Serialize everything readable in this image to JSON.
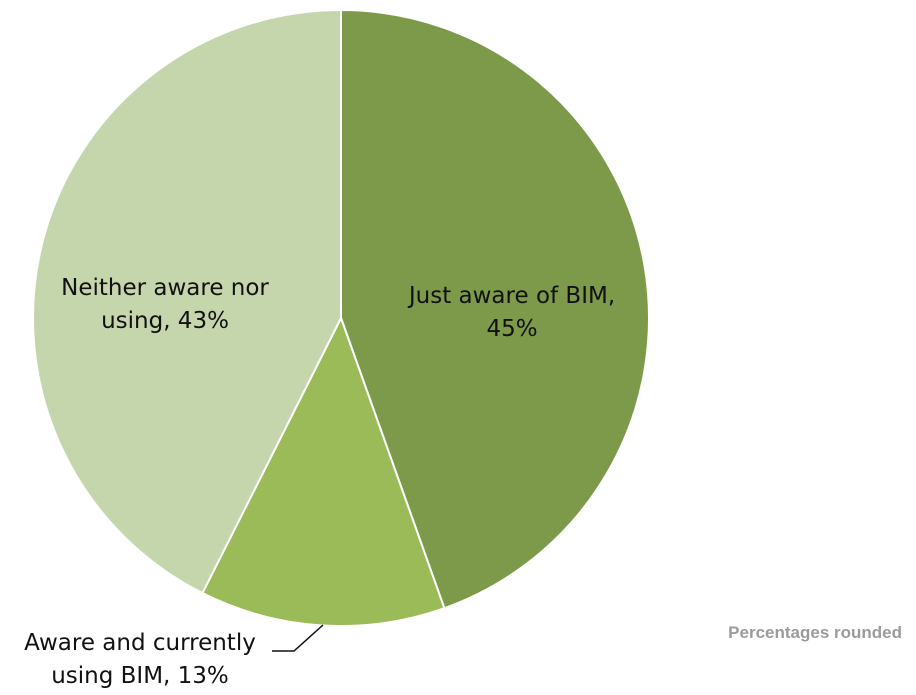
{
  "chart_data": {
    "type": "pie",
    "slices": [
      {
        "category": "Just aware of BIM",
        "value": 45,
        "color": "#7d9a4a",
        "label_lines": [
          "Just aware of BIM,",
          "45%"
        ]
      },
      {
        "category": "Aware and currently using BIM",
        "value": 13,
        "color": "#9bbb59",
        "label_lines": [
          "Aware and currently",
          "using BIM, 13%"
        ]
      },
      {
        "category": "Neither aware nor using",
        "value": 43,
        "color": "#c5d6ac",
        "label_lines": [
          "Neither aware nor",
          "using, 43%"
        ]
      }
    ],
    "start_angle_deg": 0,
    "direction": "clockwise",
    "legend": "none"
  },
  "footnote": "Percentages rounded"
}
